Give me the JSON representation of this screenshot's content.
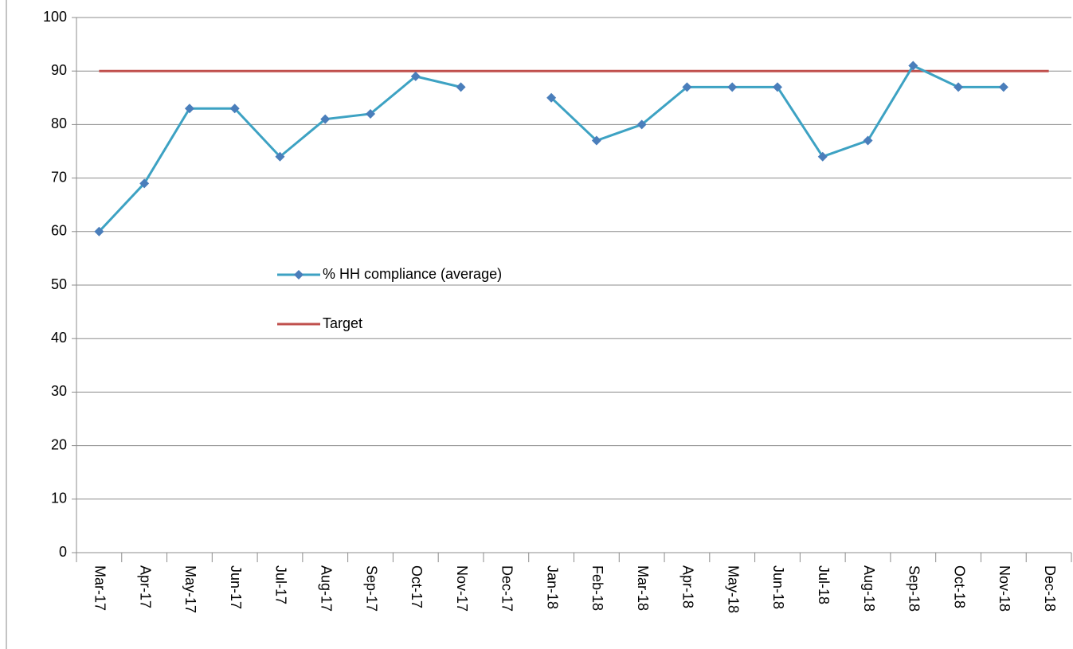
{
  "chart_data": {
    "type": "line",
    "categories": [
      "Mar-17",
      "Apr-17",
      "May-17",
      "Jun-17",
      "Jul-17",
      "Aug-17",
      "Sep-17",
      "Oct-17",
      "Nov-17",
      "Dec-17",
      "Jan-18",
      "Feb-18",
      "Mar-18",
      "Apr-18",
      "May-18",
      "Jun-18",
      "Jul-18",
      "Aug-18",
      "Sep-18",
      "Oct-18",
      "Nov-18",
      "Dec-18"
    ],
    "series": [
      {
        "name": "% HH compliance (average)",
        "color": "#3da2c3",
        "marker": "diamond",
        "marker_color": "#4a7ebb",
        "values": [
          60,
          69,
          83,
          83,
          74,
          81,
          82,
          89,
          87,
          null,
          85,
          77,
          80,
          87,
          87,
          87,
          74,
          77,
          91,
          87,
          87,
          null
        ]
      },
      {
        "name": "Target",
        "color": "#c0504d",
        "values": [
          90,
          90,
          90,
          90,
          90,
          90,
          90,
          90,
          90,
          90,
          90,
          90,
          90,
          90,
          90,
          90,
          90,
          90,
          90,
          90,
          90,
          90
        ]
      }
    ],
    "ylim": [
      0,
      100
    ],
    "yticks": [
      0,
      10,
      20,
      30,
      40,
      50,
      60,
      70,
      80,
      90,
      100
    ],
    "grid": true,
    "legend": "center-left"
  }
}
